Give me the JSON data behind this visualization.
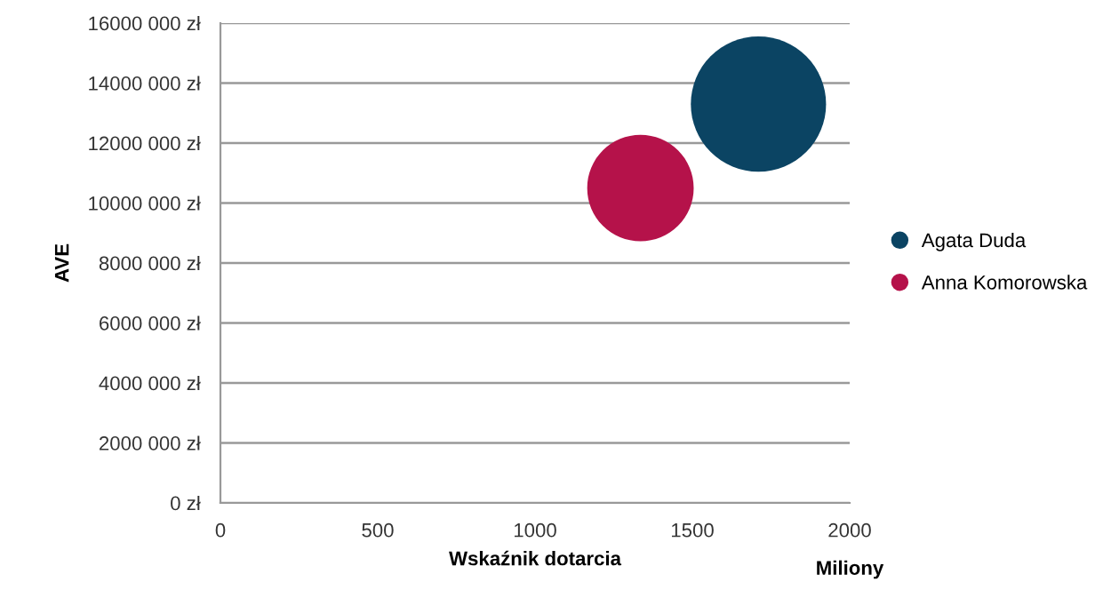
{
  "chart_data": {
    "type": "bubble",
    "ylabel": "AVE",
    "xlabel": "Wskaźnik dotarcia",
    "annotations": [
      "Miliony"
    ],
    "series": [
      {
        "name": "Agata Duda",
        "color": "#0b4463",
        "x": [
          1710
        ],
        "values": [
          13300000
        ],
        "sizes": [
          1
        ]
      },
      {
        "name": "Anna Komorowska",
        "color": "#b5124a",
        "x": [
          1335
        ],
        "values": [
          10500000
        ],
        "sizes": [
          0.62
        ]
      }
    ],
    "xlim": [
      0,
      2000
    ],
    "xticks": [
      0,
      500,
      1000,
      1500,
      2000
    ],
    "ylim": [
      0,
      16000000
    ],
    "yticks": [
      {
        "value": 0,
        "label": "0 zł"
      },
      {
        "value": 2000000,
        "label": "2000 000 zł"
      },
      {
        "value": 4000000,
        "label": "4000 000 zł"
      },
      {
        "value": 6000000,
        "label": "6000 000 zł"
      },
      {
        "value": 8000000,
        "label": "8000 000 zł"
      },
      {
        "value": 10000000,
        "label": "10000 000 zł"
      },
      {
        "value": 12000000,
        "label": "12000 000 zł"
      },
      {
        "value": 14000000,
        "label": "14000 000 zł"
      },
      {
        "value": 16000000,
        "label": "16000 000 zł"
      }
    ],
    "grid": "y",
    "legend": "right"
  }
}
